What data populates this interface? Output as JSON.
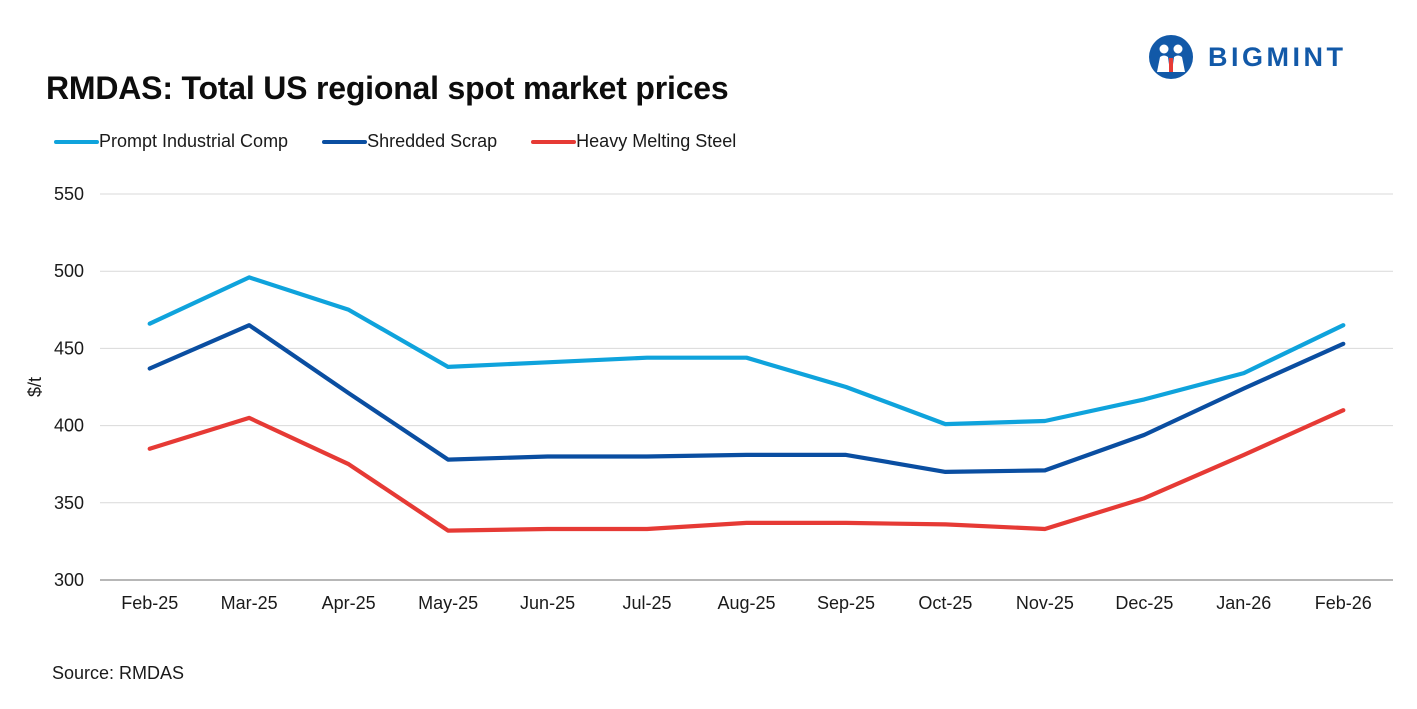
{
  "brand": {
    "name": "BIGMINT",
    "color": "#1259a8"
  },
  "source": "Source: RMDAS",
  "chart_data": {
    "type": "line",
    "title": "RMDAS: Total US regional spot market prices",
    "xlabel": "",
    "ylabel": "$/t",
    "ylim": [
      300,
      550
    ],
    "yticks": [
      300,
      350,
      400,
      450,
      500,
      550
    ],
    "grid": true,
    "legend_position": "top-left",
    "categories": [
      "Feb-25",
      "Mar-25",
      "Apr-25",
      "May-25",
      "Jun-25",
      "Jul-25",
      "Aug-25",
      "Sep-25",
      "Oct-25",
      "Nov-25",
      "Dec-25",
      "Jan-26",
      "Feb-26"
    ],
    "series": [
      {
        "name": "Prompt Industrial Comp",
        "color": "#0fa3dc",
        "values": [
          466,
          496,
          475,
          438,
          441,
          444,
          444,
          425,
          401,
          403,
          417,
          434,
          465
        ]
      },
      {
        "name": "Shredded Scrap",
        "color": "#0a4ea1",
        "values": [
          437,
          465,
          421,
          378,
          380,
          380,
          381,
          381,
          370,
          371,
          394,
          424,
          453
        ]
      },
      {
        "name": "Heavy Melting Steel",
        "color": "#e63a35",
        "values": [
          385,
          405,
          375,
          332,
          333,
          333,
          337,
          337,
          336,
          333,
          353,
          381,
          410
        ]
      }
    ]
  }
}
